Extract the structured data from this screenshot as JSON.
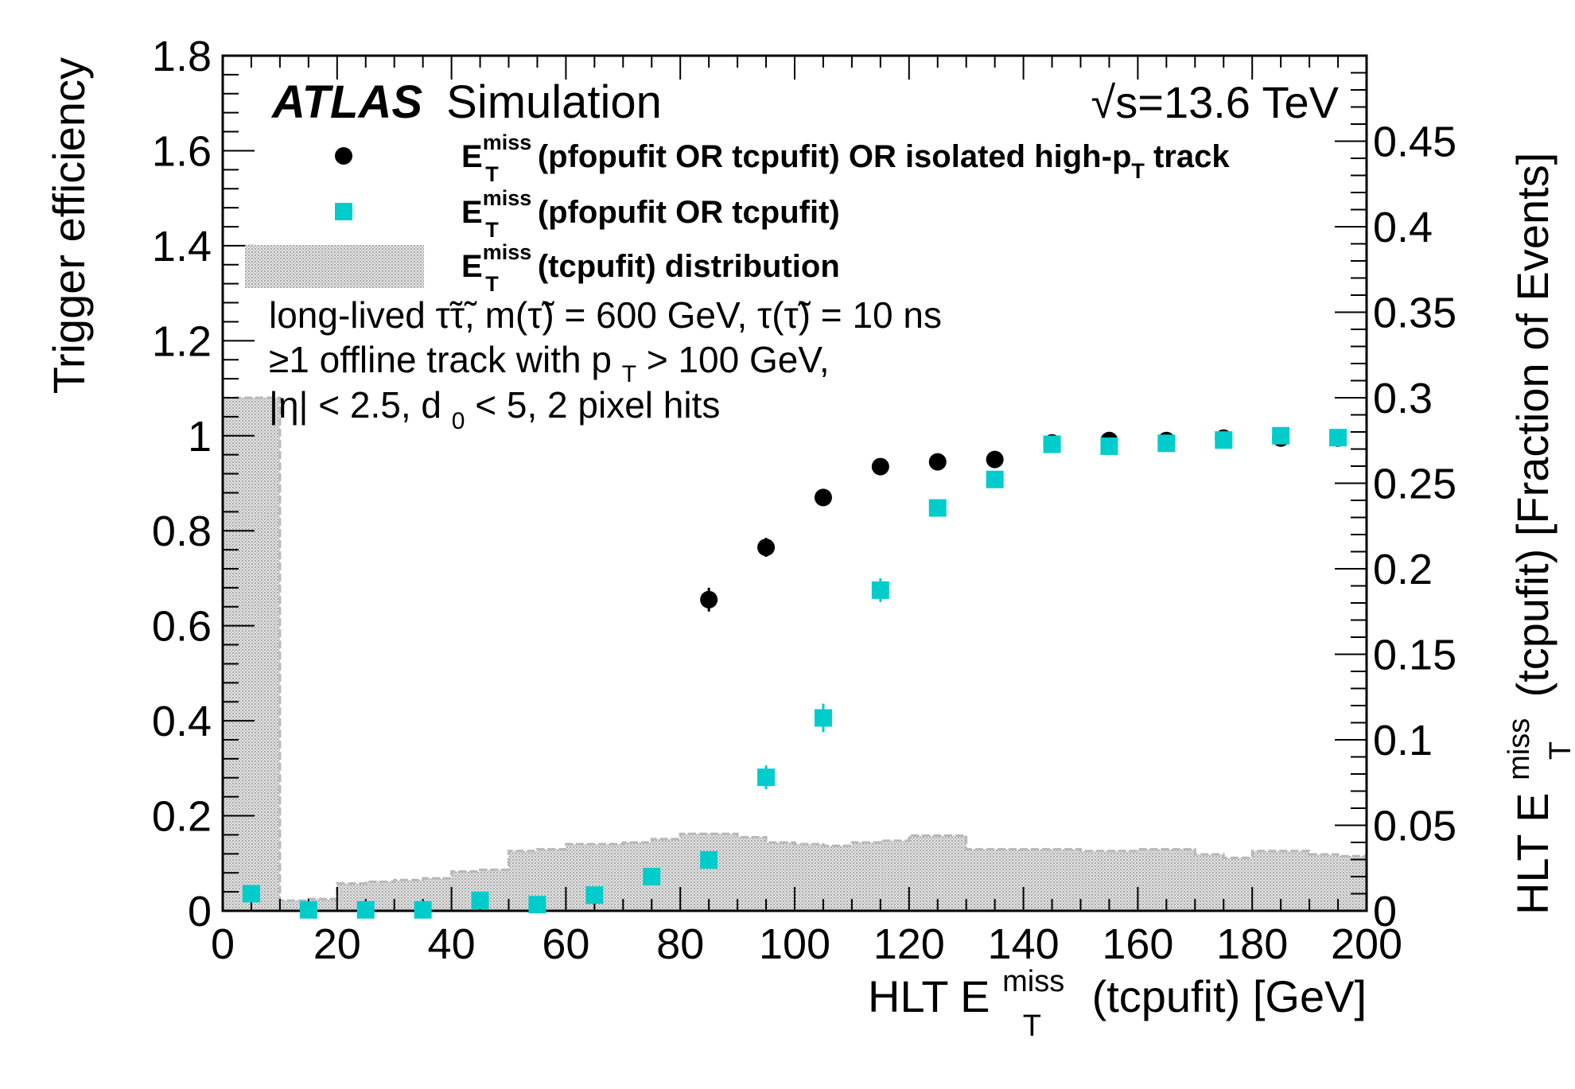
{
  "chart_data": {
    "type": "scatter",
    "title": "ATLAS Simulation",
    "experiment": "ATLAS",
    "experiment_suffix": "Simulation",
    "energy_label": "√s=13.6 TeV",
    "xlabel": "HLT E_T^miss (tcpufit) [GeV]",
    "xlabel_parts": {
      "pre": "HLT E",
      "sup": "miss",
      "sub": "T",
      "post": " (tcpufit) [GeV]"
    },
    "ylabel": "Trigger efficiency",
    "y2label": "HLT E_T^miss (tcpufit) [Fraction of Events]",
    "y2label_parts": {
      "pre": "HLT E",
      "sup": "miss",
      "sub": "T",
      "post": " (tcpufit)  [Fraction of Events]"
    },
    "xlim": [
      0,
      200
    ],
    "ylim": [
      0,
      1.8
    ],
    "y2lim": [
      0,
      0.5
    ],
    "x_ticks": [
      0,
      20,
      40,
      60,
      80,
      100,
      120,
      140,
      160,
      180,
      200
    ],
    "x_tick_labels": [
      "0",
      "20",
      "40",
      "60",
      "80",
      "100",
      "120",
      "140",
      "160",
      "180",
      "200"
    ],
    "y_ticks": [
      0,
      0.2,
      0.4,
      0.6,
      0.8,
      1,
      1.2,
      1.4,
      1.6,
      1.8
    ],
    "y_tick_labels": [
      "0",
      "0.2",
      "0.4",
      "0.6",
      "0.8",
      "1",
      "1.2",
      "1.4",
      "1.6",
      "1.8"
    ],
    "y2_ticks": [
      0,
      0.05,
      0.1,
      0.15,
      0.2,
      0.25,
      0.3,
      0.35,
      0.4,
      0.45
    ],
    "y2_tick_labels": [
      "0",
      "0.05",
      "0.1",
      "0.15",
      "0.2",
      "0.25",
      "0.3",
      "0.35",
      "0.4",
      "0.45"
    ],
    "legend": [
      {
        "marker": "circle",
        "color": "#000000",
        "pre": "E",
        "sup": "miss",
        "sub": "T",
        "text": " (pfopufit OR tcpufit) OR isolated high-p",
        "sub2": "T",
        "text2": " track"
      },
      {
        "marker": "square",
        "color": "#00cccc",
        "pre": "E",
        "sup": "miss",
        "sub": "T",
        "text": " (pfopufit OR tcpufit)"
      },
      {
        "marker": "hatch",
        "color": "#c8c8c8",
        "pre": "E",
        "sup": "miss",
        "sub": "T",
        "text": " (tcpufit) distribution"
      }
    ],
    "annotations": {
      "line1": "long-lived τ̃τ̃, m(τ̃) = 600 GeV, τ(τ̃) = 10 ns",
      "line2_pre": "≥1 offline track with p",
      "line2_sub": "T",
      "line2_post": " > 100 GeV,",
      "line3_pre": "|η| < 2.5, d",
      "line3_sub": "0",
      "line3_post": " < 5, 2 pixel hits"
    },
    "series": [
      {
        "name": "E_T^miss (pfopufit OR tcpufit) OR isolated high-p_T track",
        "marker": "circle",
        "color": "#000000",
        "x": [
          85,
          95,
          105,
          115,
          125,
          135,
          145,
          155,
          165,
          175,
          185,
          195
        ],
        "y": [
          0.655,
          0.765,
          0.87,
          0.935,
          0.945,
          0.95,
          0.985,
          0.99,
          0.99,
          0.995,
          0.995,
          0.995
        ],
        "yerr": [
          0.025,
          0.02,
          0.018,
          0.012,
          0.01,
          0.01,
          0.008,
          0.007,
          0.007,
          0.006,
          0.006,
          0.006
        ]
      },
      {
        "name": "E_T^miss (pfopufit OR tcpufit)",
        "marker": "square",
        "color": "#00cccc",
        "x": [
          5,
          15,
          25,
          35,
          45,
          55,
          65,
          75,
          85,
          95,
          105,
          115,
          125,
          135,
          145,
          155,
          165,
          175,
          185,
          195
        ],
        "y": [
          0.036,
          0.002,
          0.002,
          0.002,
          0.022,
          0.013,
          0.033,
          0.072,
          0.107,
          0.281,
          0.406,
          0.675,
          0.848,
          0.908,
          0.982,
          0.978,
          0.984,
          0.991,
          1.0,
          0.996
        ],
        "yerr": [
          0.01,
          0.008,
          0.008,
          0.008,
          0.01,
          0.01,
          0.012,
          0.015,
          0.018,
          0.025,
          0.03,
          0.025,
          0.018,
          0.012,
          0.008,
          0.007,
          0.007,
          0.006,
          0.005,
          0.005
        ]
      },
      {
        "name": "E_T^miss (tcpufit) distribution",
        "type": "histogram",
        "axis": "y2",
        "color": "#c8c8c8",
        "bin_width": 5,
        "x": [
          0,
          5,
          10,
          15,
          20,
          25,
          30,
          35,
          40,
          45,
          50,
          55,
          60,
          65,
          70,
          75,
          80,
          85,
          90,
          95,
          100,
          105,
          110,
          115,
          120,
          125,
          130,
          135,
          140,
          145,
          150,
          155,
          160,
          165,
          170,
          175,
          180,
          185,
          190,
          195
        ],
        "values": [
          0.3,
          0.3,
          0.006,
          0.007,
          0.016,
          0.017,
          0.018,
          0.019,
          0.023,
          0.024,
          0.035,
          0.036,
          0.039,
          0.039,
          0.04,
          0.042,
          0.045,
          0.045,
          0.043,
          0.04,
          0.039,
          0.038,
          0.04,
          0.041,
          0.044,
          0.044,
          0.036,
          0.036,
          0.036,
          0.036,
          0.035,
          0.035,
          0.036,
          0.036,
          0.033,
          0.031,
          0.035,
          0.035,
          0.033,
          0.032
        ]
      }
    ]
  }
}
